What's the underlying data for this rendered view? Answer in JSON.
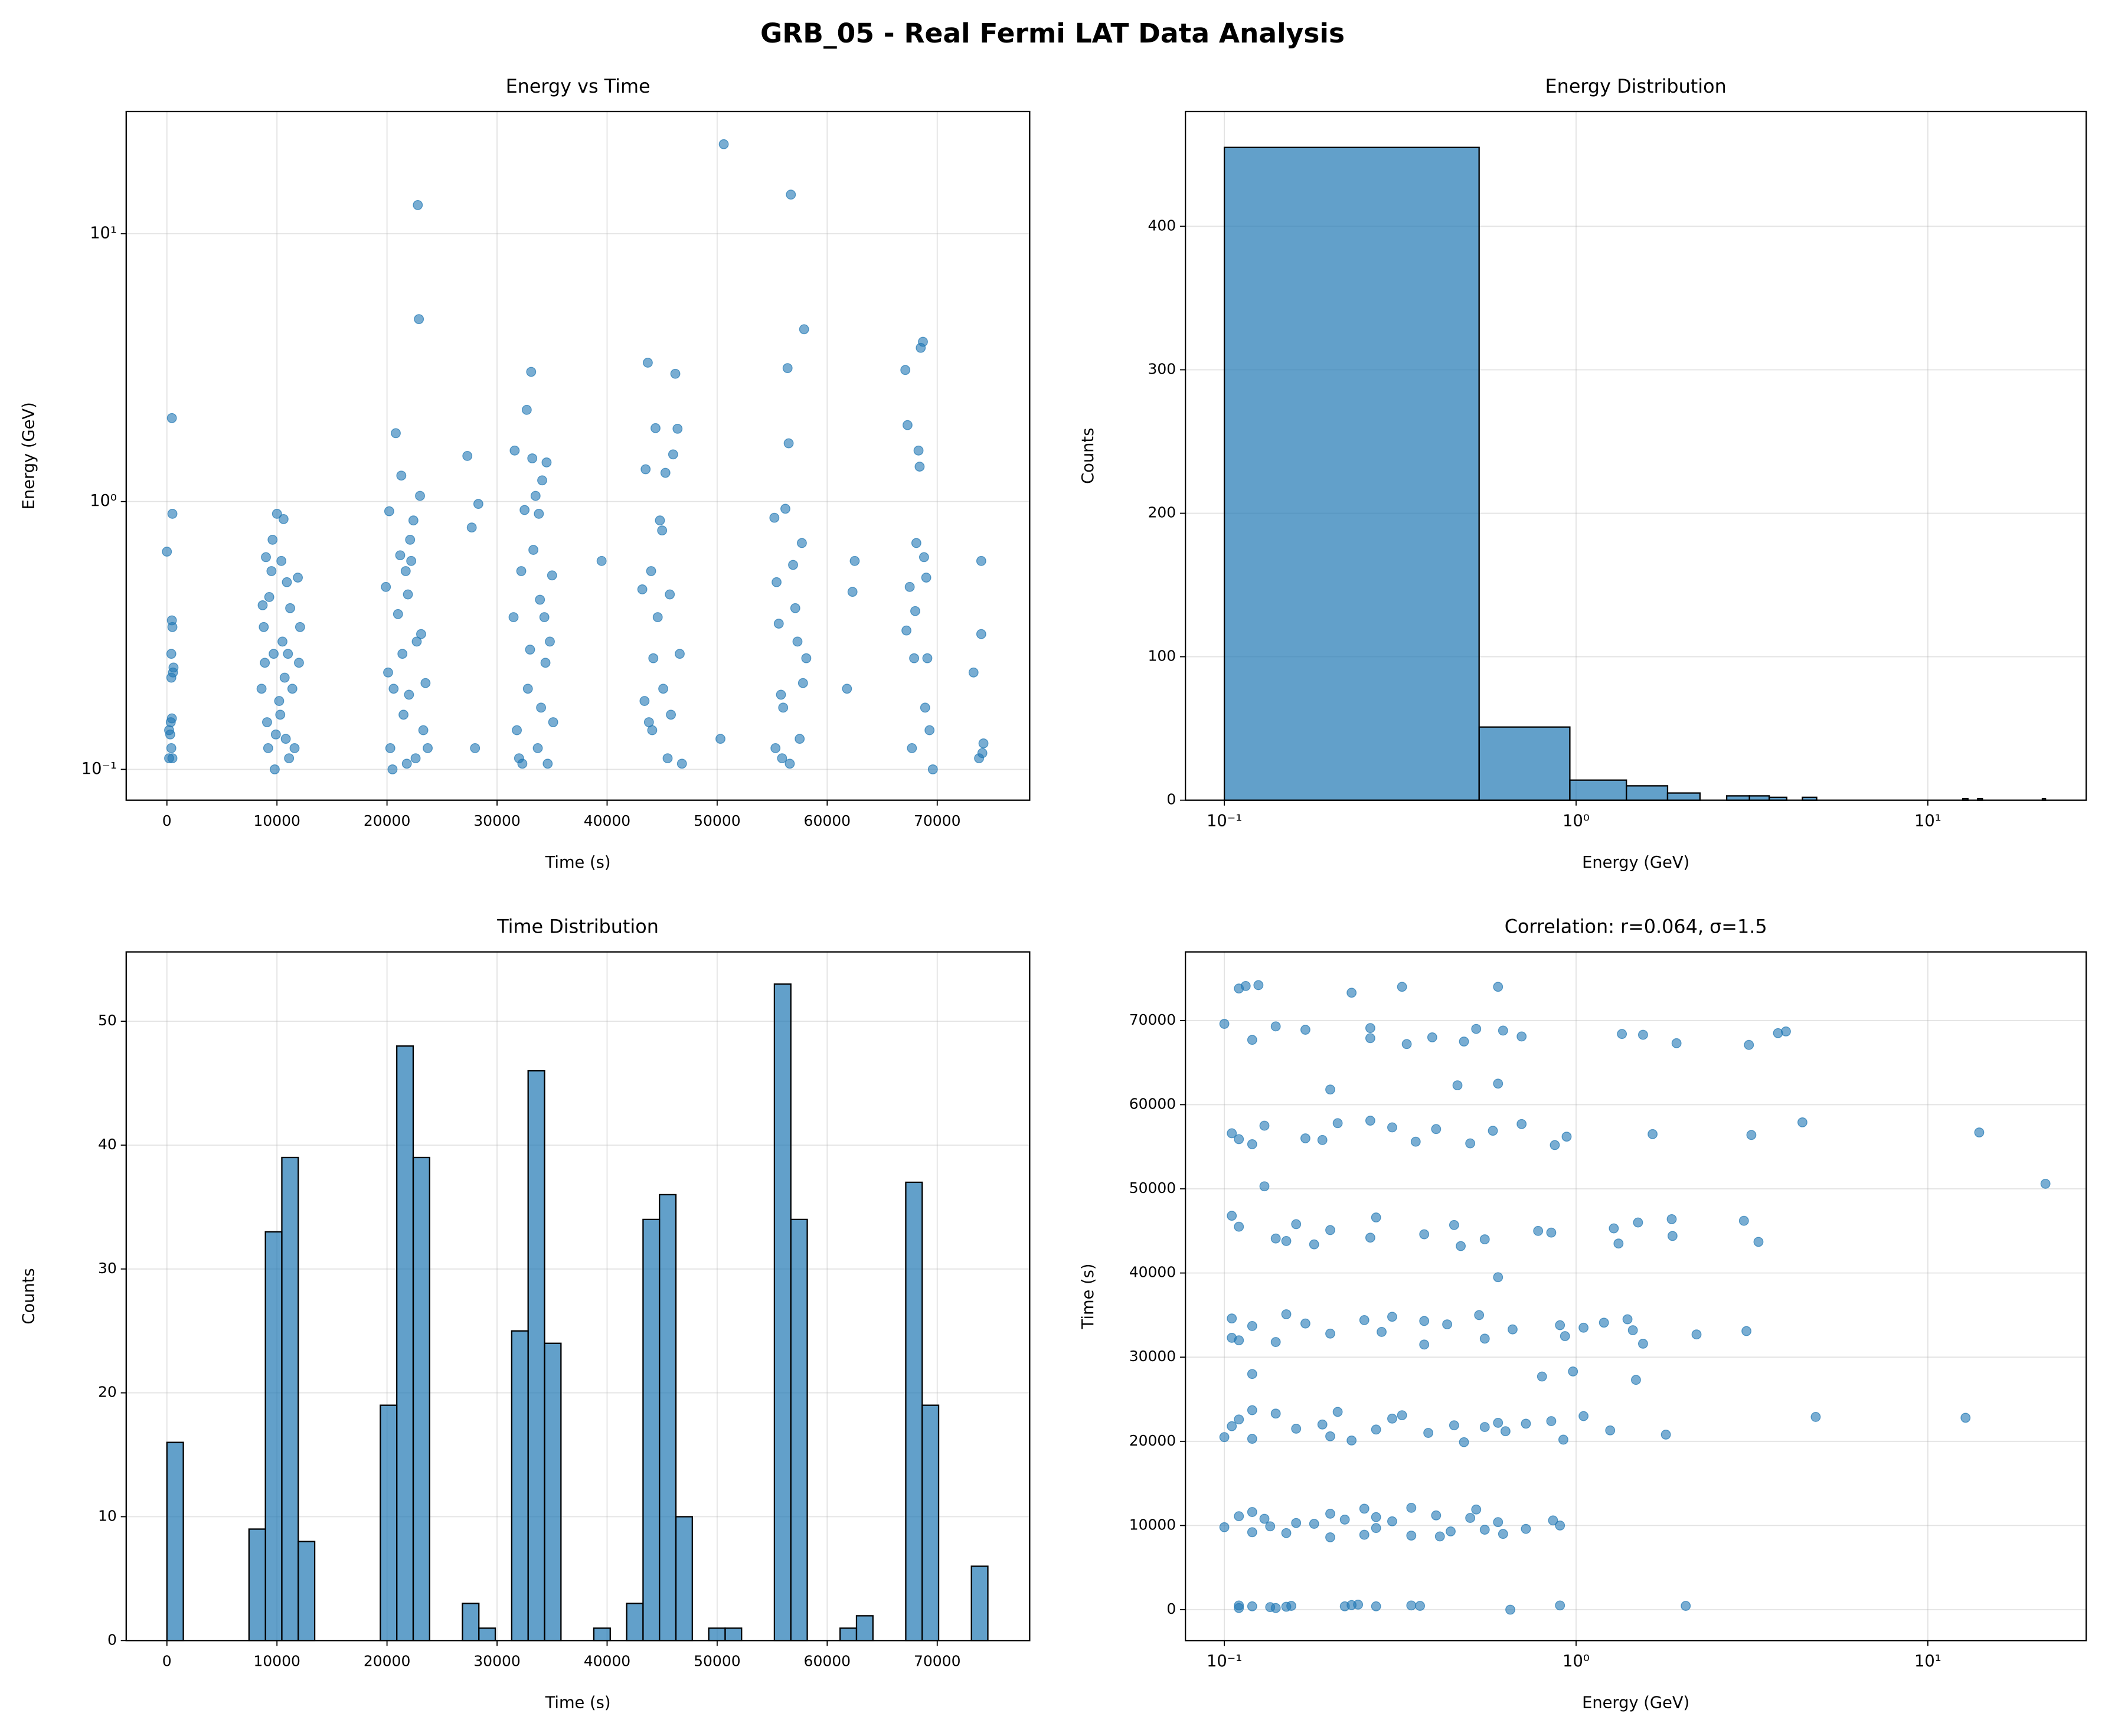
{
  "title": "GRB_05 - Real Fermi LAT Data Analysis",
  "chart_data": [
    {
      "type": "scatter",
      "title": "Energy vs Time",
      "xlabel": "Time (s)",
      "ylabel": "Energy (GeV)",
      "xlim": [
        -3700,
        78400
      ],
      "ylim": [
        0.0767,
        28.6
      ],
      "yscale": "log",
      "grid": true,
      "color": "#1f77b4",
      "xticks": [
        0,
        10000,
        20000,
        30000,
        40000,
        50000,
        60000,
        70000
      ],
      "yticks": [
        {
          "value": 0.1,
          "label": "10⁻¹"
        },
        {
          "value": 1,
          "label": "10⁰"
        },
        {
          "value": 10,
          "label": "10¹"
        }
      ],
      "x": [
        0,
        200,
        300,
        400,
        450,
        500,
        450,
        500,
        550,
        400,
        450,
        350,
        400,
        500,
        600,
        200,
        8700,
        8800,
        9000,
        8900,
        9100,
        9300,
        9600,
        9500,
        9700,
        9800,
        9900,
        10000,
        10200,
        10400,
        10500,
        10600,
        10700,
        10800,
        10900,
        11000,
        11200,
        11400,
        11600,
        11900,
        12000,
        12100,
        9200,
        10300,
        11100,
        8600,
        19900,
        20100,
        20200,
        20300,
        20500,
        20800,
        21000,
        21200,
        21300,
        21400,
        21500,
        21700,
        21900,
        22000,
        22200,
        22400,
        22600,
        22800,
        22900,
        23000,
        23100,
        23300,
        23500,
        23700,
        20600,
        22100,
        21800,
        22700,
        27300,
        27700,
        28000,
        28300,
        39500,
        50300,
        50600,
        61800,
        62300,
        62500,
        73300,
        73800,
        74000,
        74000,
        74200,
        74100,
        31500,
        31600,
        31800,
        32000,
        32200,
        32500,
        32700,
        32800,
        33000,
        33100,
        33200,
        33300,
        33500,
        33700,
        33900,
        34000,
        34100,
        34300,
        34400,
        34500,
        34600,
        34800,
        35000,
        35100,
        32300,
        33800,
        43200,
        43500,
        43700,
        43800,
        44000,
        44200,
        44400,
        44600,
        44800,
        45000,
        45100,
        45300,
        45500,
        45800,
        46000,
        46200,
        46400,
        46600,
        46800,
        43400,
        44100,
        45700,
        55200,
        55400,
        55600,
        55800,
        55900,
        56200,
        56400,
        56500,
        56700,
        56900,
        57100,
        57300,
        57500,
        57700,
        57900,
        58100,
        55300,
        56000,
        56600,
        57800,
        67100,
        67300,
        67500,
        67700,
        67900,
        68100,
        68300,
        68400,
        68500,
        68700,
        68800,
        68900,
        69100,
        69300,
        69600,
        67200,
        68000,
        69000
      ],
      "values": [
        0.65,
        0.11,
        0.135,
        0.27,
        2.05,
        0.9,
        0.36,
        0.34,
        0.23,
        0.22,
        0.155,
        0.15,
        0.12,
        0.11,
        0.24,
        0.14,
        0.41,
        0.34,
        0.62,
        0.25,
        0.15,
        0.44,
        0.72,
        0.55,
        0.27,
        0.1,
        0.135,
        0.9,
        0.18,
        0.6,
        0.3,
        0.86,
        0.22,
        0.13,
        0.5,
        0.27,
        0.4,
        0.2,
        0.12,
        0.52,
        0.25,
        0.34,
        0.12,
        0.16,
        0.11,
        0.2,
        0.48,
        0.23,
        0.92,
        0.12,
        0.1,
        1.8,
        0.38,
        0.63,
        1.25,
        0.27,
        0.16,
        0.55,
        0.45,
        0.19,
        0.6,
        0.85,
        0.11,
        12.8,
        4.8,
        1.05,
        0.32,
        0.14,
        0.21,
        0.12,
        0.2,
        0.72,
        0.105,
        0.3,
        1.48,
        0.8,
        0.12,
        0.98,
        0.6,
        0.13,
        21.6,
        0.2,
        0.46,
        0.6,
        0.23,
        0.11,
        0.6,
        0.32,
        0.125,
        0.115,
        0.37,
        1.55,
        0.14,
        0.11,
        0.55,
        0.93,
        2.2,
        0.2,
        0.28,
        3.05,
        1.45,
        0.66,
        1.05,
        0.12,
        0.43,
        0.17,
        1.2,
        0.37,
        0.25,
        1.4,
        0.105,
        0.3,
        0.53,
        0.15,
        0.105,
        0.9,
        0.47,
        1.32,
        3.3,
        0.15,
        0.55,
        0.26,
        1.88,
        0.37,
        0.85,
        0.78,
        0.2,
        1.28,
        0.11,
        0.16,
        1.5,
        3,
        1.87,
        0.27,
        0.105,
        0.18,
        0.14,
        0.45,
        0.87,
        0.5,
        0.35,
        0.19,
        0.11,
        0.94,
        3.15,
        1.65,
        14,
        0.58,
        0.4,
        0.3,
        0.13,
        0.7,
        4.4,
        0.26,
        0.12,
        0.17,
        0.105,
        0.21,
        3.1,
        1.93,
        0.48,
        0.12,
        0.26,
        0.7,
        1.55,
        1.35,
        3.75,
        3.95,
        0.62,
        0.17,
        0.26,
        0.14,
        0.1,
        0.33,
        0.39,
        0.52
      ]
    },
    {
      "type": "histogram",
      "title": "Energy Distribution",
      "xlabel": "Energy (GeV)",
      "ylabel": "Counts",
      "xlim": [
        0.0775,
        28.2
      ],
      "ylim": [
        0,
        480
      ],
      "xscale": "log",
      "grid": true,
      "color": "#1f77b4",
      "xticks": [
        {
          "value": 0.1,
          "label": "10⁻¹"
        },
        {
          "value": 1,
          "label": "10⁰"
        },
        {
          "value": 10,
          "label": "10¹"
        }
      ],
      "yticks": [
        0,
        100,
        200,
        300,
        400
      ],
      "bins": [
        0.1,
        0.53,
        0.96,
        1.39,
        1.82,
        2.25,
        2.68,
        3.11,
        3.54,
        3.97,
        4.4,
        4.83,
        5.26,
        5.69,
        6.12,
        6.55,
        6.98,
        7.41,
        7.84,
        8.27,
        8.7,
        9.13,
        9.56,
        9.99,
        10.42,
        10.85,
        11.28,
        11.71,
        12.14,
        12.57,
        13,
        13.43,
        13.86,
        14.29,
        14.72,
        15.15,
        15.58,
        16.01,
        16.44,
        16.87,
        17.3,
        17.73,
        18.16,
        18.59,
        19.02,
        19.45,
        19.88,
        20.31,
        20.74,
        21.17,
        21.6
      ],
      "values": [
        455,
        51,
        14,
        10,
        5,
        0,
        3,
        3,
        2,
        0,
        2,
        0,
        0,
        0,
        0,
        0,
        0,
        0,
        0,
        0,
        0,
        0,
        0,
        0,
        0,
        0,
        0,
        0,
        0,
        1,
        0,
        0,
        1,
        0,
        0,
        0,
        0,
        0,
        0,
        0,
        0,
        0,
        0,
        0,
        0,
        0,
        0,
        0,
        0,
        1
      ]
    },
    {
      "type": "histogram",
      "title": "Time Distribution",
      "xlabel": "Time (s)",
      "ylabel": "Counts",
      "xlim": [
        -3700,
        78400
      ],
      "ylim": [
        0,
        55.6
      ],
      "grid": true,
      "color": "#1f77b4",
      "xticks": [
        0,
        10000,
        20000,
        30000,
        40000,
        50000,
        60000,
        70000
      ],
      "yticks": [
        0,
        10,
        20,
        30,
        40,
        50
      ],
      "bins": [
        0,
        1492,
        2984,
        4476,
        5968,
        7460,
        8952,
        10444,
        11936,
        13428,
        14920,
        16412,
        17904,
        19396,
        20888,
        22380,
        23872,
        25364,
        26856,
        28348,
        29840,
        31332,
        32824,
        34316,
        35808,
        37300,
        38792,
        40284,
        41776,
        43268,
        44760,
        46252,
        47744,
        49236,
        50728,
        52220,
        53712,
        55204,
        56696,
        58188,
        59680,
        61172,
        62664,
        64156,
        65648,
        67140,
        68632,
        70124,
        71616,
        73108,
        74600
      ],
      "values": [
        16,
        0,
        0,
        0,
        0,
        9,
        33,
        39,
        8,
        0,
        0,
        0,
        0,
        19,
        48,
        39,
        0,
        0,
        3,
        1,
        0,
        25,
        46,
        24,
        0,
        0,
        1,
        0,
        3,
        34,
        36,
        10,
        0,
        1,
        1,
        0,
        0,
        53,
        34,
        0,
        0,
        1,
        2,
        0,
        0,
        37,
        19,
        0,
        0,
        6
      ]
    },
    {
      "type": "scatter",
      "title": "Correlation: r=0.064, σ=1.5",
      "xlabel": "Energy (GeV)",
      "ylabel": "Time (s)",
      "xlim": [
        0.0775,
        28.2
      ],
      "ylim": [
        -3670,
        78150
      ],
      "xscale": "log",
      "grid": true,
      "color": "#1f77b4",
      "xticks": [
        {
          "value": 0.1,
          "label": "10⁻¹"
        },
        {
          "value": 1,
          "label": "10⁰"
        },
        {
          "value": 10,
          "label": "10¹"
        }
      ],
      "yticks": [
        0,
        10000,
        20000,
        30000,
        40000,
        50000,
        60000,
        70000
      ],
      "x": [
        0.65,
        0.11,
        0.135,
        0.27,
        2.05,
        0.9,
        0.36,
        0.34,
        0.23,
        0.22,
        0.155,
        0.15,
        0.12,
        0.11,
        0.24,
        0.14,
        0.41,
        0.34,
        0.62,
        0.25,
        0.15,
        0.44,
        0.72,
        0.55,
        0.27,
        0.1,
        0.135,
        0.9,
        0.18,
        0.6,
        0.3,
        0.86,
        0.22,
        0.13,
        0.5,
        0.27,
        0.4,
        0.2,
        0.12,
        0.52,
        0.25,
        0.34,
        0.12,
        0.16,
        0.11,
        0.2,
        0.48,
        0.23,
        0.92,
        0.12,
        0.1,
        1.8,
        0.38,
        0.63,
        1.25,
        0.27,
        0.16,
        0.55,
        0.45,
        0.19,
        0.6,
        0.85,
        0.11,
        12.8,
        4.8,
        1.05,
        0.32,
        0.14,
        0.21,
        0.12,
        0.2,
        0.72,
        0.105,
        0.3,
        1.48,
        0.8,
        0.12,
        0.98,
        0.6,
        0.13,
        21.6,
        0.2,
        0.46,
        0.6,
        0.23,
        0.11,
        0.6,
        0.32,
        0.125,
        0.115,
        0.37,
        1.55,
        0.14,
        0.11,
        0.55,
        0.93,
        2.2,
        0.2,
        0.28,
        3.05,
        1.45,
        0.66,
        1.05,
        0.12,
        0.43,
        0.17,
        1.2,
        0.37,
        0.25,
        1.4,
        0.105,
        0.3,
        0.53,
        0.15,
        0.105,
        0.9,
        0.47,
        1.32,
        3.3,
        0.15,
        0.55,
        0.26,
        1.88,
        0.37,
        0.85,
        0.78,
        0.2,
        1.28,
        0.11,
        0.16,
        1.5,
        3,
        1.87,
        0.27,
        0.105,
        0.18,
        0.14,
        0.45,
        0.87,
        0.5,
        0.35,
        0.19,
        0.11,
        0.94,
        3.15,
        1.65,
        14,
        0.58,
        0.4,
        0.3,
        0.13,
        0.7,
        4.4,
        0.26,
        0.12,
        0.17,
        0.105,
        0.21,
        3.1,
        1.93,
        0.48,
        0.12,
        0.26,
        0.7,
        1.55,
        1.35,
        3.75,
        3.95,
        0.62,
        0.17,
        0.26,
        0.14,
        0.1,
        0.33,
        0.39,
        0.52
      ],
      "values": [
        0,
        200,
        300,
        400,
        450,
        500,
        450,
        500,
        550,
        400,
        450,
        350,
        400,
        500,
        600,
        200,
        8700,
        8800,
        9000,
        8900,
        9100,
        9300,
        9600,
        9500,
        9700,
        9800,
        9900,
        10000,
        10200,
        10400,
        10500,
        10600,
        10700,
        10800,
        10900,
        11000,
        11200,
        11400,
        11600,
        11900,
        12000,
        12100,
        9200,
        10300,
        11100,
        8600,
        19900,
        20100,
        20200,
        20300,
        20500,
        20800,
        21000,
        21200,
        21300,
        21400,
        21500,
        21700,
        21900,
        22000,
        22200,
        22400,
        22600,
        22800,
        22900,
        23000,
        23100,
        23300,
        23500,
        23700,
        20600,
        22100,
        21800,
        22700,
        27300,
        27700,
        28000,
        28300,
        39500,
        50300,
        50600,
        61800,
        62300,
        62500,
        73300,
        73800,
        74000,
        74000,
        74200,
        74100,
        31500,
        31600,
        31800,
        32000,
        32200,
        32500,
        32700,
        32800,
        33000,
        33100,
        33200,
        33300,
        33500,
        33700,
        33900,
        34000,
        34100,
        34300,
        34400,
        34500,
        34600,
        34800,
        35000,
        35100,
        32300,
        33800,
        43200,
        43500,
        43700,
        43800,
        44000,
        44200,
        44400,
        44600,
        44800,
        45000,
        45100,
        45300,
        45500,
        45800,
        46000,
        46200,
        46400,
        46600,
        46800,
        43400,
        44100,
        45700,
        55200,
        55400,
        55600,
        55800,
        55900,
        56200,
        56400,
        56500,
        56700,
        56900,
        57100,
        57300,
        57500,
        57700,
        57900,
        58100,
        55300,
        56000,
        56600,
        57800,
        67100,
        67300,
        67500,
        67700,
        67900,
        68100,
        68300,
        68400,
        68500,
        68700,
        68800,
        68900,
        69100,
        69300,
        69600,
        67200,
        68000,
        69000
      ]
    }
  ]
}
